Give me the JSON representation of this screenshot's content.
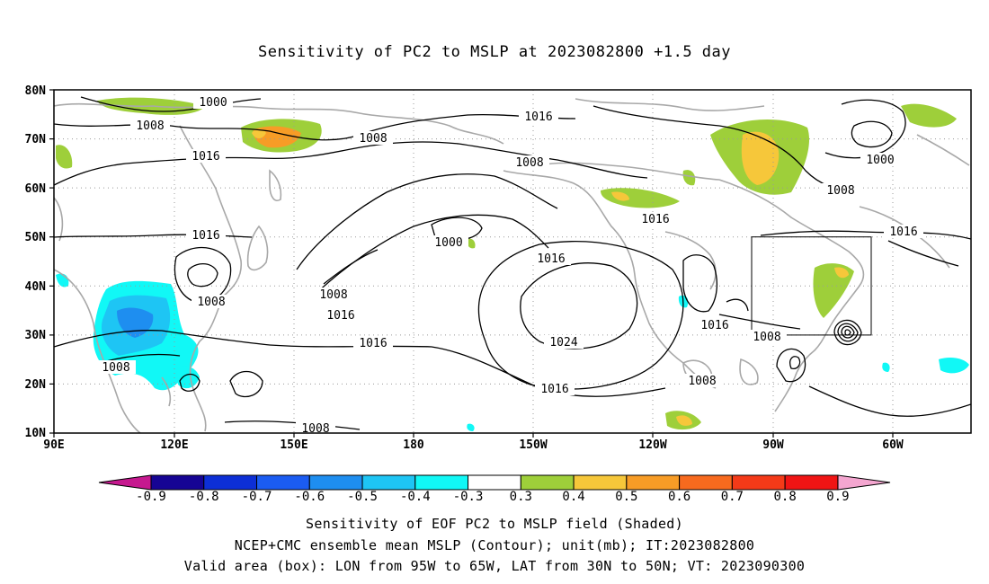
{
  "title": "Sensitivity of PC2 to MSLP at 2023082800 +1.5 day",
  "lat_labels": [
    "80N",
    "70N",
    "60N",
    "50N",
    "40N",
    "30N",
    "20N",
    "10N"
  ],
  "lon_labels": [
    "90E",
    "120E",
    "150E",
    "180",
    "150W",
    "120W",
    "90W",
    "60W"
  ],
  "contour_labels": [
    "1000",
    "1008",
    "1008",
    "1016",
    "1016",
    "1008",
    "1016",
    "1008",
    "1016",
    "1000",
    "1016",
    "1008",
    "1016",
    "1024",
    "1016",
    "1016",
    "1008",
    "1008",
    "1008",
    "1016",
    "1000",
    "1008",
    "1016",
    "1008"
  ],
  "colorbar": {
    "labels": [
      "-0.9",
      "-0.8",
      "-0.7",
      "-0.6",
      "-0.5",
      "-0.4",
      "-0.3",
      "0.3",
      "0.4",
      "0.5",
      "0.6",
      "0.7",
      "0.8",
      "0.9"
    ],
    "colors": [
      "#160494",
      "#0d2fd6",
      "#1b5cf2",
      "#1e8ef0",
      "#1ec5f4",
      "#11f8f6",
      "#ffffff",
      "#9ecf3a",
      "#f6c73a",
      "#f79c26",
      "#f76a1e",
      "#f43a18",
      "#f01414"
    ],
    "low_end_color": "#c6198f",
    "high_end_color": "#f4a6d0"
  },
  "shading_colors": {
    "cyan": "#11f8f6",
    "light_blue": "#1ec5f4",
    "blue": "#1e8ef0",
    "green": "#9ecf3a",
    "yellow": "#f6c73a",
    "orange": "#f79c26"
  },
  "footer": {
    "line1": "Sensitivity of EOF PC2 to MSLP field (Shaded)",
    "line2": "NCEP+CMC ensemble mean MSLP (Contour); unit(mb); IT:2023082800",
    "line3": "Valid area (box): LON from 95W to 65W, LAT from 30N to 50N; VT: 2023090300"
  }
}
